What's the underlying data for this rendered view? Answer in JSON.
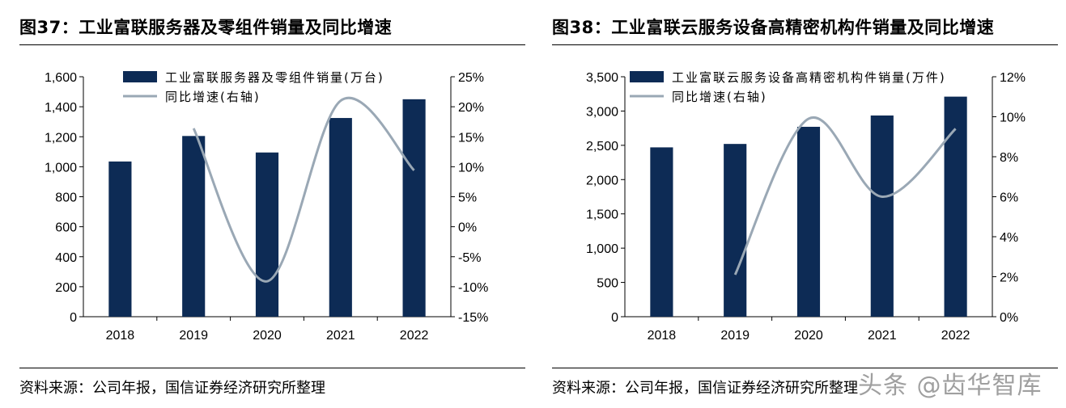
{
  "colors": {
    "bar": "#0d2b55",
    "line": "#9aa8b5",
    "rule": "#000000"
  },
  "charts": [
    {
      "title": "图37：工业富联服务器及零组件销量及同比增速",
      "source": "资料来源：公司年报，国信证券经济研究所整理",
      "legend": {
        "bar": "工业富联服务器及零组件销量(万台)",
        "line": "同比增速(右轴)"
      },
      "left_ticks": [
        "1,600",
        "1,400",
        "1,200",
        "1,000",
        "800",
        "600",
        "400",
        "200",
        "0"
      ],
      "right_ticks": [
        "25%",
        "20%",
        "15%",
        "10%",
        "5%",
        "0%",
        "-5%",
        "-10%",
        "-15%"
      ],
      "categories": [
        "2018",
        "2019",
        "2020",
        "2021",
        "2022"
      ]
    },
    {
      "title": "图38：工业富联云服务设备高精密机构件销量及同比增速",
      "source": "资料来源：公司年报，国信证券经济研究所整理",
      "legend": {
        "bar": "工业富联云服务设备高精密机构件销量(万件)",
        "line": "同比增速(右轴)"
      },
      "left_ticks": [
        "3,500",
        "3,000",
        "2,500",
        "2,000",
        "1,500",
        "1,000",
        "500",
        "0"
      ],
      "right_ticks": [
        "12%",
        "10%",
        "8%",
        "6%",
        "4%",
        "2%",
        "0%"
      ],
      "categories": [
        "2018",
        "2019",
        "2020",
        "2021",
        "2022"
      ]
    }
  ],
  "watermark": "头条 @齿华智库",
  "chart_data": [
    {
      "type": "bar",
      "title": "工业富联服务器及零组件销量及同比增速",
      "categories": [
        "2018",
        "2019",
        "2020",
        "2021",
        "2022"
      ],
      "series": [
        {
          "name": "工业富联服务器及零组件销量(万台)",
          "type": "bar",
          "axis": "left",
          "values": [
            1035,
            1205,
            1095,
            1325,
            1450
          ]
        },
        {
          "name": "同比增速(右轴)",
          "type": "line",
          "axis": "right",
          "values": [
            null,
            16.4,
            -9.1,
            21.0,
            9.4
          ]
        }
      ],
      "ylim_left": [
        0,
        1600
      ],
      "ylim_right": [
        -15,
        25
      ],
      "legend_position": "top",
      "grid": false
    },
    {
      "type": "bar",
      "title": "工业富联云服务设备高精密机构件销量及同比增速",
      "categories": [
        "2018",
        "2019",
        "2020",
        "2021",
        "2022"
      ],
      "series": [
        {
          "name": "工业富联云服务设备高精密机构件销量(万件)",
          "type": "bar",
          "axis": "left",
          "values": [
            2470,
            2520,
            2770,
            2935,
            3210
          ]
        },
        {
          "name": "同比增速(右轴)",
          "type": "line",
          "axis": "right",
          "values": [
            null,
            2.1,
            9.9,
            6.0,
            9.4
          ]
        }
      ],
      "ylim_left": [
        0,
        3500
      ],
      "ylim_right": [
        0,
        12
      ],
      "legend_position": "top",
      "grid": false
    }
  ]
}
